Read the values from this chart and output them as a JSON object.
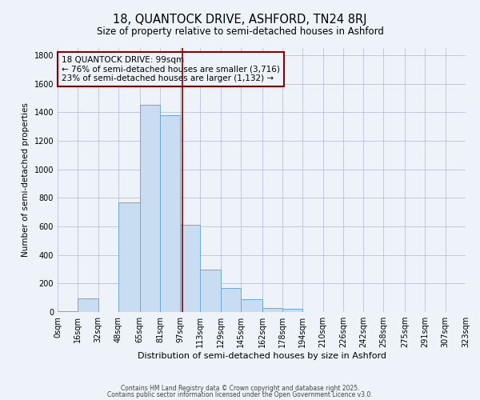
{
  "title": "18, QUANTOCK DRIVE, ASHFORD, TN24 8RJ",
  "subtitle": "Size of property relative to semi-detached houses in Ashford",
  "xlabel": "Distribution of semi-detached houses by size in Ashford",
  "ylabel": "Number of semi-detached properties",
  "bin_edges": [
    0,
    16,
    32,
    48,
    65,
    81,
    97,
    113,
    129,
    145,
    162,
    178,
    194,
    210,
    226,
    242,
    258,
    275,
    291,
    307,
    323
  ],
  "bin_labels": [
    "0sqm",
    "16sqm",
    "32sqm",
    "48sqm",
    "65sqm",
    "81sqm",
    "97sqm",
    "113sqm",
    "129sqm",
    "145sqm",
    "162sqm",
    "178sqm",
    "194sqm",
    "210sqm",
    "226sqm",
    "242sqm",
    "258sqm",
    "275sqm",
    "291sqm",
    "307sqm",
    "323sqm"
  ],
  "bar_heights": [
    5,
    95,
    0,
    770,
    1450,
    1380,
    610,
    295,
    170,
    88,
    30,
    20,
    0,
    0,
    0,
    0,
    0,
    0,
    0,
    0
  ],
  "bar_color": "#c9ddf2",
  "bar_edge_color": "#6aaad4",
  "property_line_x": 99,
  "property_line_color": "#8B0000",
  "annotation_box_color": "#8B0000",
  "annotation_line1": "18 QUANTOCK DRIVE: 99sqm",
  "annotation_line2": "← 76% of semi-detached houses are smaller (3,716)",
  "annotation_line3": "23% of semi-detached houses are larger (1,132) →",
  "ylim": [
    0,
    1850
  ],
  "background_color": "#eef2f9",
  "grid_color": "#b0b8d0",
  "footer_line1": "Contains HM Land Registry data © Crown copyright and database right 2025.",
  "footer_line2": "Contains public sector information licensed under the Open Government Licence v3.0.",
  "title_fontsize": 10.5,
  "subtitle_fontsize": 8.5,
  "xlabel_fontsize": 8,
  "ylabel_fontsize": 7.5,
  "tick_fontsize": 7,
  "annotation_fontsize": 7.5,
  "footer_fontsize": 5.5
}
